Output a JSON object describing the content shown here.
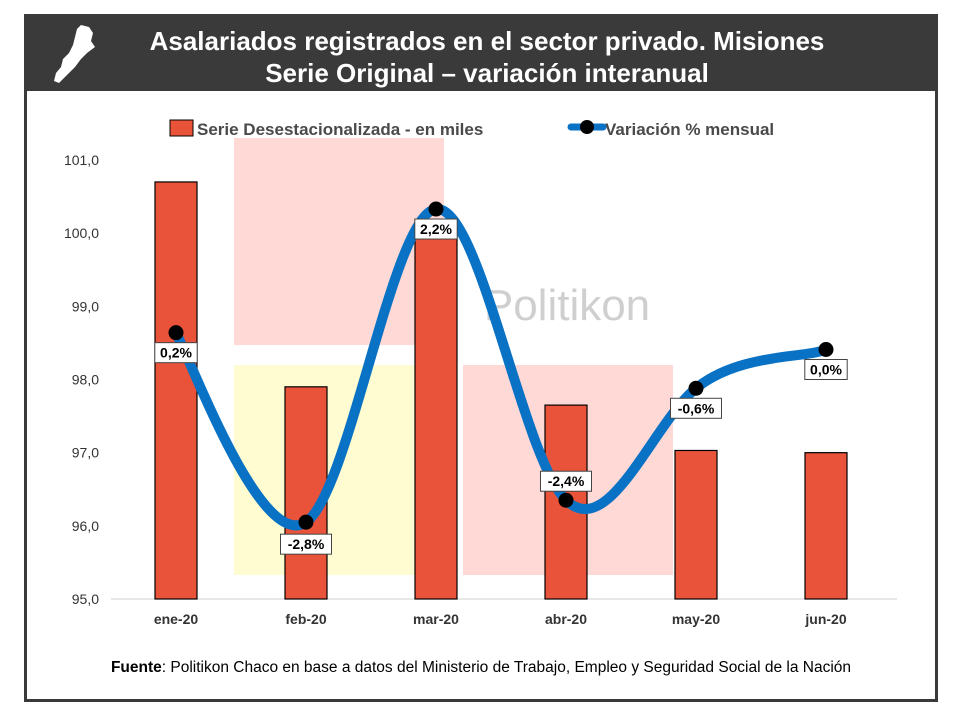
{
  "header": {
    "title_line1": "Asalariados registrados en el sector privado. Misiones",
    "title_line2": "Serie Original – variación interanual"
  },
  "watermark": "Politikon",
  "source": {
    "label": "Fuente",
    "text": ": Politikon Chaco en base a datos del Ministerio de Trabajo, Empleo y Seguridad Social de la Nación"
  },
  "colors": {
    "header_bg": "#3a3a3a",
    "bar": "#e9533a",
    "line": "#0a72c4",
    "marker": "#000000"
  },
  "chart_data": {
    "type": "bar",
    "categories": [
      "ene-20",
      "feb-20",
      "mar-20",
      "abr-20",
      "may-20",
      "jun-20"
    ],
    "ylim": [
      95.0,
      101.0
    ],
    "y_ticks": [
      "95,0",
      "96,0",
      "97,0",
      "98,0",
      "99,0",
      "100,0",
      "101,0"
    ],
    "legend_position": "top-center",
    "grid": false,
    "series": [
      {
        "name": "Serie Desestacionalizada - en miles",
        "type": "bar",
        "values": [
          100.7,
          97.9,
          100.0,
          97.65,
          97.03,
          97.0
        ]
      },
      {
        "name": "Variación % mensual",
        "type": "line",
        "smooth": true,
        "values": [
          0.2,
          -2.8,
          2.2,
          -2.4,
          -0.6,
          0.0
        ],
        "labels": [
          "0,2%",
          "-2,8%",
          "2,2%",
          "-2,4%",
          "-0,6%",
          "0,0%"
        ],
        "plot_levels": [
          98.64,
          96.05,
          100.33,
          96.35,
          97.88,
          98.41
        ]
      }
    ]
  }
}
